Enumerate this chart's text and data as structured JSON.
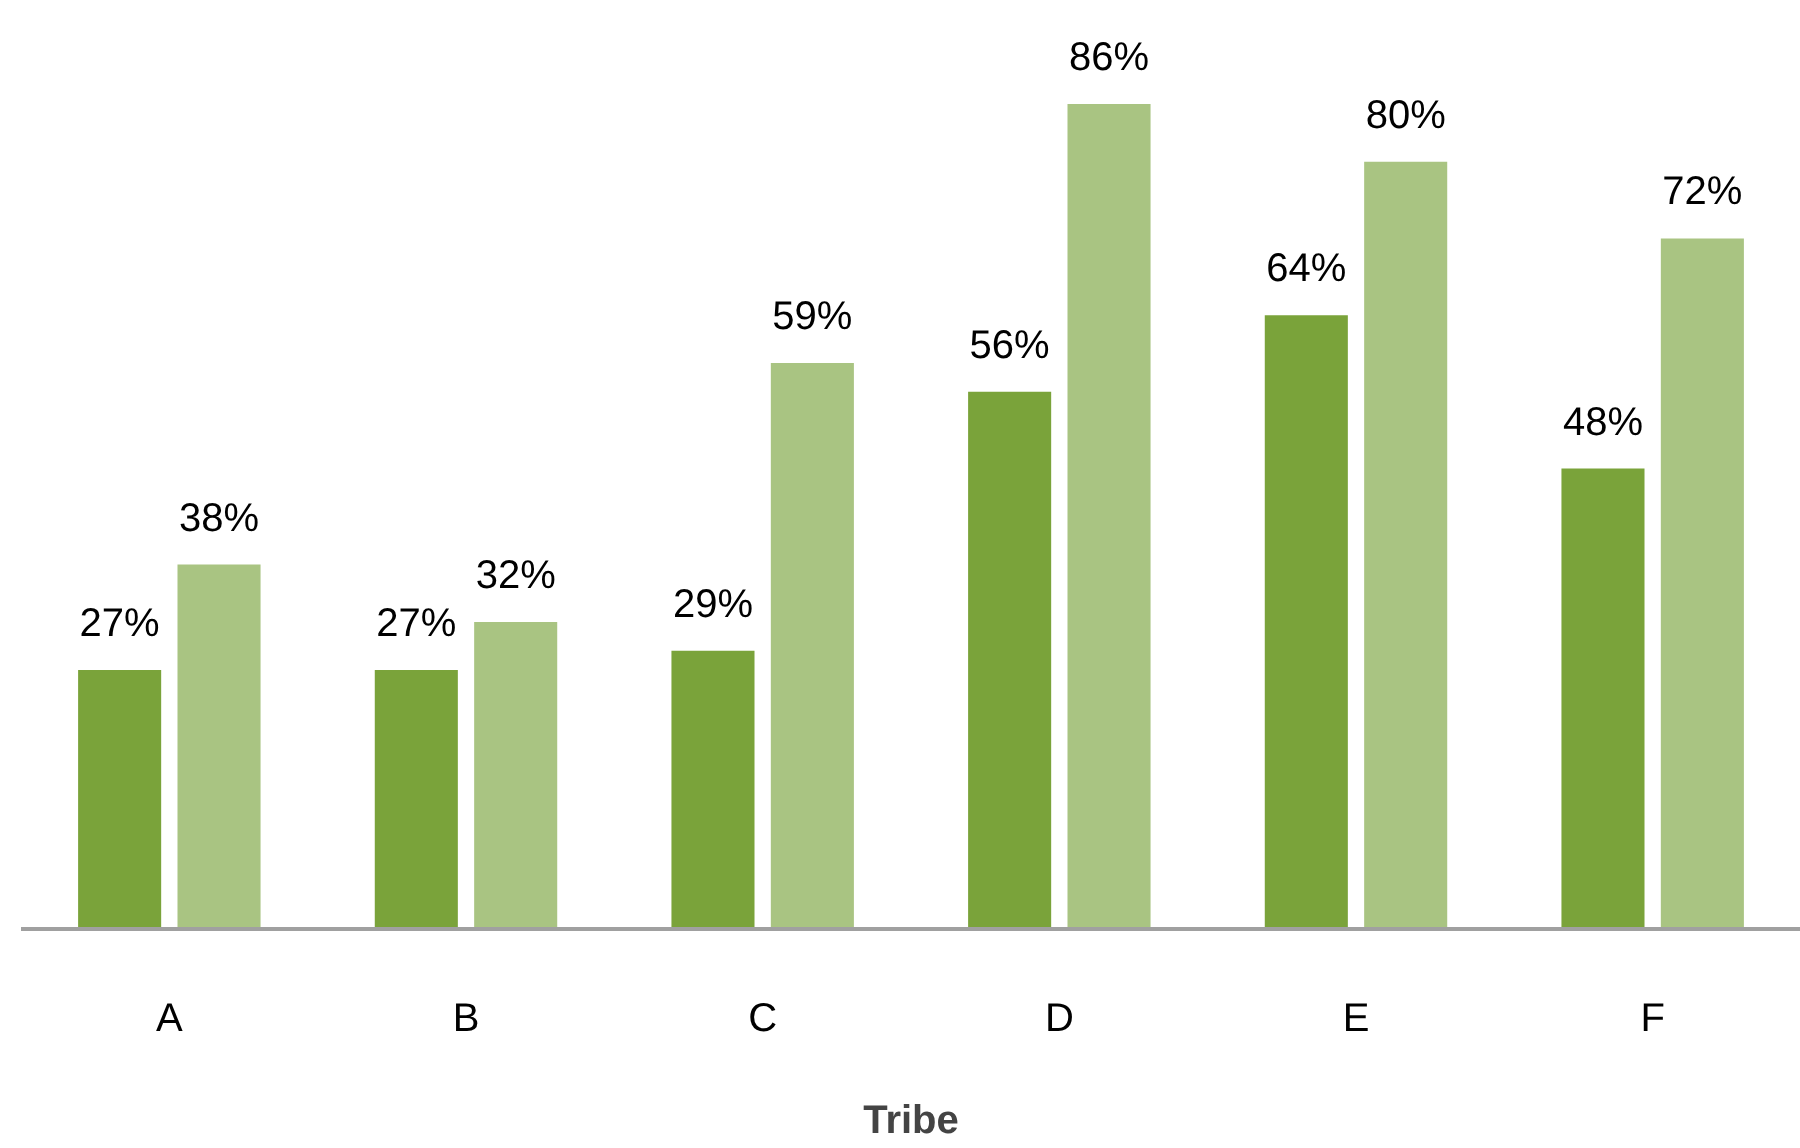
{
  "chart_data": {
    "type": "bar",
    "xlabel": "Tribe",
    "categories": [
      "A",
      "B",
      "C",
      "D",
      "E",
      "F"
    ],
    "series": [
      {
        "color": "#7aa33a",
        "values": [
          27,
          27,
          29,
          56,
          64,
          48
        ],
        "value_labels": [
          "27%",
          "27%",
          "29%",
          "56%",
          "64%",
          "48%"
        ]
      },
      {
        "color": "#a9c482",
        "values": [
          38,
          32,
          59,
          86,
          80,
          72
        ],
        "value_labels": [
          "38%",
          "32%",
          "59%",
          "86%",
          "80%",
          "72%"
        ]
      }
    ]
  }
}
